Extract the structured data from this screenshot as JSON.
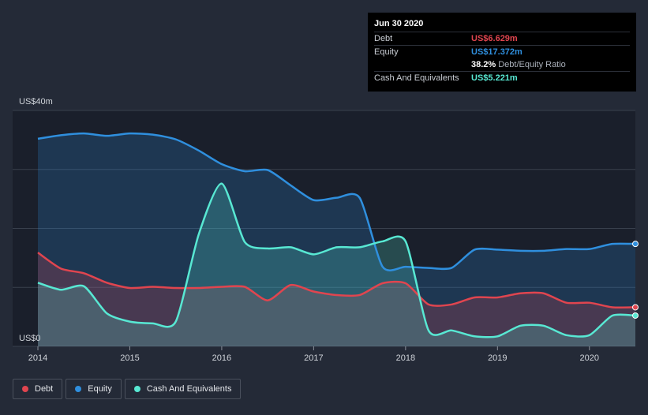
{
  "chart_data": {
    "type": "area",
    "y_top_label": "US$40m",
    "y_bottom_label": "US$0",
    "ylim": [
      0,
      40
    ],
    "xlim": [
      2014.0,
      2020.5
    ],
    "x_ticks": [
      {
        "value": 2014,
        "label": "2014"
      },
      {
        "value": 2015,
        "label": "2015"
      },
      {
        "value": 2016,
        "label": "2016"
      },
      {
        "value": 2017,
        "label": "2017"
      },
      {
        "value": 2018,
        "label": "2018"
      },
      {
        "value": 2019,
        "label": "2019"
      },
      {
        "value": 2020,
        "label": "2020"
      }
    ],
    "grid": true,
    "series": [
      {
        "name": "Equity",
        "color": "#2f8fde",
        "points": [
          [
            2014.0,
            35.2
          ],
          [
            2014.25,
            35.8
          ],
          [
            2014.5,
            36.1
          ],
          [
            2014.75,
            35.7
          ],
          [
            2015.0,
            36.1
          ],
          [
            2015.25,
            35.9
          ],
          [
            2015.5,
            35.1
          ],
          [
            2015.75,
            33.2
          ],
          [
            2016.0,
            30.9
          ],
          [
            2016.25,
            29.7
          ],
          [
            2016.5,
            29.9
          ],
          [
            2016.75,
            27.3
          ],
          [
            2017.0,
            24.8
          ],
          [
            2017.25,
            25.2
          ],
          [
            2017.5,
            25.2
          ],
          [
            2017.75,
            13.5
          ],
          [
            2018.0,
            13.5
          ],
          [
            2018.25,
            13.3
          ],
          [
            2018.5,
            13.3
          ],
          [
            2018.75,
            16.4
          ],
          [
            2019.0,
            16.4
          ],
          [
            2019.25,
            16.2
          ],
          [
            2019.5,
            16.2
          ],
          [
            2019.75,
            16.5
          ],
          [
            2020.0,
            16.5
          ],
          [
            2020.25,
            17.372
          ],
          [
            2020.5,
            17.372
          ]
        ]
      },
      {
        "name": "Debt",
        "color": "#e0454f",
        "points": [
          [
            2014.0,
            15.9
          ],
          [
            2014.25,
            13.2
          ],
          [
            2014.5,
            12.4
          ],
          [
            2014.75,
            10.8
          ],
          [
            2015.0,
            9.9
          ],
          [
            2015.25,
            10.1
          ],
          [
            2015.5,
            9.9
          ],
          [
            2015.75,
            9.9
          ],
          [
            2016.0,
            10.1
          ],
          [
            2016.25,
            10.1
          ],
          [
            2016.5,
            7.8
          ],
          [
            2016.75,
            10.4
          ],
          [
            2017.0,
            9.3
          ],
          [
            2017.25,
            8.7
          ],
          [
            2017.5,
            8.7
          ],
          [
            2017.75,
            10.7
          ],
          [
            2018.0,
            10.7
          ],
          [
            2018.25,
            7.1
          ],
          [
            2018.5,
            7.1
          ],
          [
            2018.75,
            8.3
          ],
          [
            2019.0,
            8.3
          ],
          [
            2019.25,
            9.0
          ],
          [
            2019.5,
            9.0
          ],
          [
            2019.75,
            7.4
          ],
          [
            2020.0,
            7.4
          ],
          [
            2020.25,
            6.629
          ],
          [
            2020.5,
            6.629
          ]
        ]
      },
      {
        "name": "Cash And Equivalents",
        "color": "#58e8d3",
        "points": [
          [
            2014.0,
            10.8
          ],
          [
            2014.25,
            9.6
          ],
          [
            2014.5,
            10.2
          ],
          [
            2014.75,
            5.6
          ],
          [
            2015.0,
            4.2
          ],
          [
            2015.25,
            3.9
          ],
          [
            2015.5,
            4.2
          ],
          [
            2015.75,
            19.0
          ],
          [
            2016.0,
            27.6
          ],
          [
            2016.25,
            17.7
          ],
          [
            2016.5,
            16.6
          ],
          [
            2016.75,
            16.8
          ],
          [
            2017.0,
            15.6
          ],
          [
            2017.25,
            16.8
          ],
          [
            2017.5,
            16.8
          ],
          [
            2017.75,
            17.8
          ],
          [
            2018.0,
            17.8
          ],
          [
            2018.25,
            2.7
          ],
          [
            2018.5,
            2.7
          ],
          [
            2018.75,
            1.7
          ],
          [
            2019.0,
            1.7
          ],
          [
            2019.25,
            3.5
          ],
          [
            2019.5,
            3.5
          ],
          [
            2019.75,
            1.9
          ],
          [
            2020.0,
            1.9
          ],
          [
            2020.25,
            5.221
          ],
          [
            2020.5,
            5.221
          ]
        ]
      }
    ]
  },
  "tooltip": {
    "date": "Jun 30 2020",
    "debt_label": "Debt",
    "debt_value": "US$6.629m",
    "debt_color": "#e0454f",
    "equity_label": "Equity",
    "equity_value": "US$17.372m",
    "equity_color": "#2f8fde",
    "ratio_value": "38.2%",
    "ratio_label": "Debt/Equity Ratio",
    "cash_label": "Cash And Equivalents",
    "cash_value": "US$5.221m",
    "cash_color": "#58e8d3"
  },
  "legend": [
    {
      "label": "Debt",
      "color": "#e0454f"
    },
    {
      "label": "Equity",
      "color": "#2f8fde"
    },
    {
      "label": "Cash And Equivalents",
      "color": "#58e8d3"
    }
  ]
}
